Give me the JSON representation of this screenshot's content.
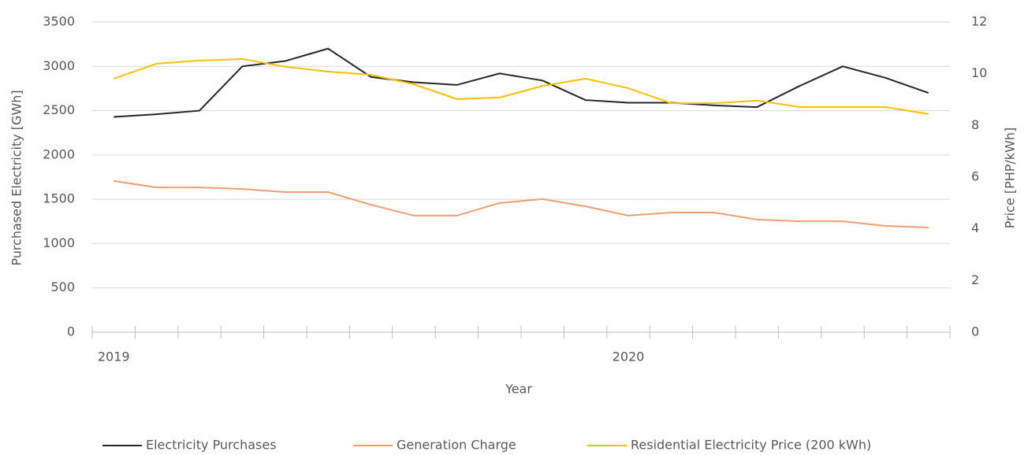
{
  "chart_data": {
    "type": "line",
    "xlabel": "Year",
    "ylabel": "Purchased Electricity [GWh]",
    "y2label": "Price [PHP/kWh]",
    "categories": [
      "2019",
      null,
      null,
      null,
      null,
      null,
      null,
      null,
      null,
      null,
      null,
      null,
      "2020",
      null,
      null,
      null,
      null,
      null,
      null,
      null
    ],
    "series": [
      {
        "name": "Electricity Purchases",
        "color": "#262626",
        "values": [
          2430,
          2460,
          2500,
          3000,
          3060,
          3200,
          2880,
          2820,
          2790,
          2920,
          2840,
          2620,
          2590,
          2590,
          2560,
          2540,
          2780,
          3000,
          2870,
          2700
        ]
      },
      {
        "name": "Generation Charge",
        "color": "#f0a070",
        "axis": "y2",
        "values": [
          5.85,
          5.6,
          5.6,
          5.54,
          5.42,
          5.42,
          4.93,
          4.51,
          4.51,
          5.0,
          5.15,
          4.87,
          4.51,
          4.63,
          4.63,
          4.36,
          4.29,
          4.29,
          4.11,
          4.05
        ]
      },
      {
        "name": "Residential Electricity Price (200 kWh)",
        "color": "#ffc000",
        "axis": "y2",
        "values": [
          9.81,
          10.39,
          10.51,
          10.57,
          10.27,
          10.08,
          9.96,
          9.59,
          9.02,
          9.08,
          9.53,
          9.81,
          9.44,
          8.86,
          8.86,
          8.96,
          8.71,
          8.71,
          8.71,
          8.44
        ]
      }
    ],
    "ylim": [
      0,
      3500
    ],
    "yticks": [
      0,
      500,
      1000,
      1500,
      2000,
      2500,
      3000,
      3500
    ],
    "y2lim": [
      0,
      12
    ],
    "y2ticks": [
      0,
      2,
      4,
      6,
      8,
      10,
      12
    ],
    "grid": true,
    "legend": "bottom"
  }
}
